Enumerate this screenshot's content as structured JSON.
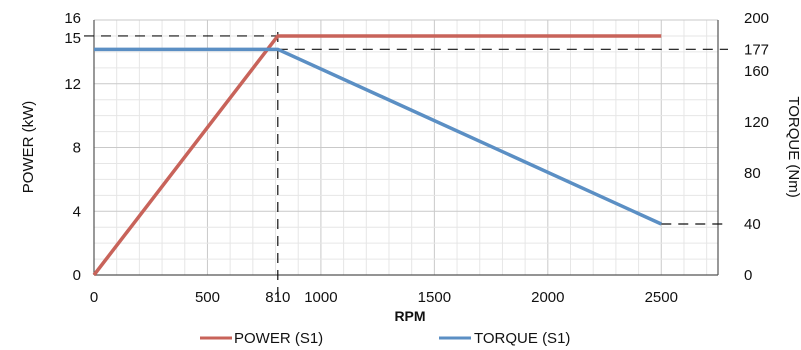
{
  "chart_data": {
    "type": "line",
    "title": "",
    "xlabel": "RPM",
    "ylabel_left": "POWER (kW)",
    "ylabel_right": "TORQUE (Nm)",
    "xlim": [
      0,
      2750
    ],
    "ylim_left": [
      0,
      16
    ],
    "ylim_right": [
      0,
      200
    ],
    "x_ticks": [
      "0",
      "500",
      "810",
      "1000",
      "1500",
      "2000",
      "2500"
    ],
    "x_tick_values": [
      0,
      500,
      810,
      1000,
      1500,
      2000,
      2500
    ],
    "y_left_ticks": [
      "0",
      "4",
      "8",
      "12",
      "15",
      "16"
    ],
    "y_left_tick_values": [
      0,
      4,
      8,
      12,
      15,
      16
    ],
    "y_right_ticks": [
      "0",
      "40",
      "80",
      "120",
      "160",
      "177",
      "200"
    ],
    "y_right_tick_values": [
      0,
      40,
      80,
      120,
      160,
      177,
      200
    ],
    "grid": true,
    "legend": "bottom",
    "series": [
      {
        "name": "POWER (S1)",
        "axis": "left",
        "color": "#c8635a",
        "x": [
          0,
          810,
          2500
        ],
        "y": [
          0,
          15,
          15
        ]
      },
      {
        "name": "TORQUE (S1)",
        "axis": "right",
        "color": "#5b8fc4",
        "x": [
          0,
          810,
          2500
        ],
        "y": [
          177,
          177,
          40
        ]
      }
    ],
    "reference_lines": {
      "power_level": 15,
      "rated_rpm": 810,
      "torque_level": 177,
      "torque_end": 40
    }
  }
}
